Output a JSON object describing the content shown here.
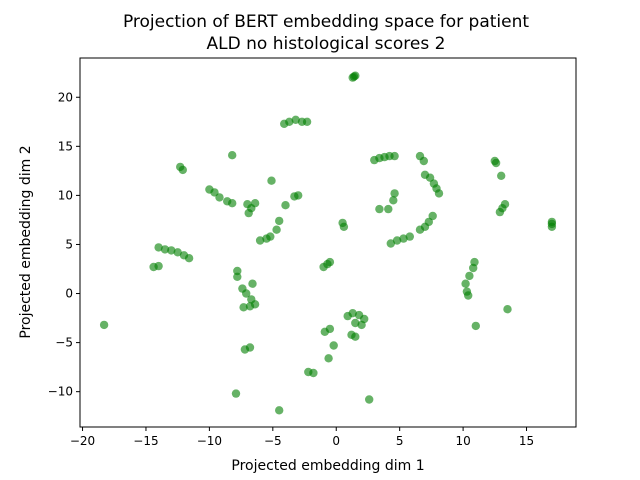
{
  "chart_data": {
    "type": "scatter",
    "title_lines": [
      "Projection of BERT embedding space for patient",
      "ALD no histological scores 2"
    ],
    "xlabel": "Projected embedding dim 1",
    "ylabel": "Projected embedding dim 2",
    "xlim": [
      -20.2,
      18.9
    ],
    "ylim": [
      -13.6,
      24.0
    ],
    "xticks": [
      -20,
      -15,
      -10,
      -5,
      0,
      5,
      10,
      15
    ],
    "yticks": [
      -10,
      -5,
      0,
      5,
      10,
      15,
      20
    ],
    "grid": false,
    "legend": false,
    "color": "#007f00",
    "point_alpha": 0.6,
    "series": [
      {
        "values": [
          {
            "x": 1.3,
            "y": 22.0
          },
          {
            "x": 1.4,
            "y": 22.1
          },
          {
            "x": 1.5,
            "y": 22.2
          },
          {
            "x": -4.1,
            "y": 17.3
          },
          {
            "x": -3.7,
            "y": 17.5
          },
          {
            "x": -3.2,
            "y": 17.7
          },
          {
            "x": -2.7,
            "y": 17.5
          },
          {
            "x": -2.3,
            "y": 17.5
          },
          {
            "x": -12.3,
            "y": 12.9
          },
          {
            "x": -12.1,
            "y": 12.6
          },
          {
            "x": -8.2,
            "y": 14.1
          },
          {
            "x": -5.1,
            "y": 11.5
          },
          {
            "x": -10.0,
            "y": 10.6
          },
          {
            "x": -9.6,
            "y": 10.3
          },
          {
            "x": -9.2,
            "y": 9.8
          },
          {
            "x": -8.6,
            "y": 9.4
          },
          {
            "x": -8.2,
            "y": 9.2
          },
          {
            "x": -7.0,
            "y": 9.1
          },
          {
            "x": -6.7,
            "y": 8.7
          },
          {
            "x": -6.4,
            "y": 9.2
          },
          {
            "x": -6.9,
            "y": 8.2
          },
          {
            "x": -4.0,
            "y": 9.0
          },
          {
            "x": -3.3,
            "y": 9.9
          },
          {
            "x": -3.0,
            "y": 10.0
          },
          {
            "x": -4.5,
            "y": 7.4
          },
          {
            "x": -4.7,
            "y": 6.5
          },
          {
            "x": -5.2,
            "y": 5.8
          },
          {
            "x": -6.0,
            "y": 5.4
          },
          {
            "x": -5.5,
            "y": 5.6
          },
          {
            "x": -14.0,
            "y": 4.7
          },
          {
            "x": -13.5,
            "y": 4.5
          },
          {
            "x": -13.0,
            "y": 4.4
          },
          {
            "x": -12.5,
            "y": 4.2
          },
          {
            "x": -12.0,
            "y": 3.9
          },
          {
            "x": -11.6,
            "y": 3.6
          },
          {
            "x": -14.4,
            "y": 2.7
          },
          {
            "x": -14.0,
            "y": 2.8
          },
          {
            "x": -7.8,
            "y": 2.3
          },
          {
            "x": -7.8,
            "y": 1.7
          },
          {
            "x": -7.4,
            "y": 0.5
          },
          {
            "x": -7.1,
            "y": 0.0
          },
          {
            "x": -6.7,
            "y": -0.6
          },
          {
            "x": -6.4,
            "y": -1.1
          },
          {
            "x": -7.3,
            "y": -1.4
          },
          {
            "x": -6.8,
            "y": -1.3
          },
          {
            "x": -6.6,
            "y": 1.0
          },
          {
            "x": -7.2,
            "y": -5.7
          },
          {
            "x": -6.8,
            "y": -5.5
          },
          {
            "x": -18.3,
            "y": -3.2
          },
          {
            "x": -7.9,
            "y": -10.2
          },
          {
            "x": -4.5,
            "y": -11.9
          },
          {
            "x": -2.2,
            "y": -8.0
          },
          {
            "x": -1.8,
            "y": -8.1
          },
          {
            "x": -1.0,
            "y": 2.7
          },
          {
            "x": -0.7,
            "y": 3.0
          },
          {
            "x": -0.5,
            "y": 3.2
          },
          {
            "x": 0.5,
            "y": 7.2
          },
          {
            "x": 0.6,
            "y": 6.8
          },
          {
            "x": -0.9,
            "y": -3.9
          },
          {
            "x": -0.5,
            "y": -3.6
          },
          {
            "x": -0.2,
            "y": -5.3
          },
          {
            "x": -0.6,
            "y": -6.6
          },
          {
            "x": 0.9,
            "y": -2.3
          },
          {
            "x": 1.3,
            "y": -2.0
          },
          {
            "x": 1.8,
            "y": -2.2
          },
          {
            "x": 2.2,
            "y": -2.6
          },
          {
            "x": 1.5,
            "y": -3.0
          },
          {
            "x": 2.0,
            "y": -3.2
          },
          {
            "x": 1.2,
            "y": -4.2
          },
          {
            "x": 1.5,
            "y": -4.4
          },
          {
            "x": 2.6,
            "y": -10.8
          },
          {
            "x": 3.0,
            "y": 13.6
          },
          {
            "x": 3.4,
            "y": 13.8
          },
          {
            "x": 3.8,
            "y": 13.9
          },
          {
            "x": 4.2,
            "y": 14.0
          },
          {
            "x": 4.6,
            "y": 14.0
          },
          {
            "x": 3.4,
            "y": 8.6
          },
          {
            "x": 4.1,
            "y": 8.6
          },
          {
            "x": 4.5,
            "y": 9.5
          },
          {
            "x": 4.6,
            "y": 10.2
          },
          {
            "x": 4.3,
            "y": 5.1
          },
          {
            "x": 4.8,
            "y": 5.4
          },
          {
            "x": 5.3,
            "y": 5.6
          },
          {
            "x": 5.8,
            "y": 5.8
          },
          {
            "x": 6.6,
            "y": 14.0
          },
          {
            "x": 6.9,
            "y": 13.5
          },
          {
            "x": 7.0,
            "y": 12.1
          },
          {
            "x": 7.4,
            "y": 11.8
          },
          {
            "x": 7.7,
            "y": 11.2
          },
          {
            "x": 7.9,
            "y": 10.7
          },
          {
            "x": 8.1,
            "y": 10.2
          },
          {
            "x": 6.6,
            "y": 6.5
          },
          {
            "x": 7.0,
            "y": 6.8
          },
          {
            "x": 7.3,
            "y": 7.3
          },
          {
            "x": 7.6,
            "y": 7.9
          },
          {
            "x": 10.2,
            "y": 1.0
          },
          {
            "x": 10.3,
            "y": 0.2
          },
          {
            "x": 10.4,
            "y": -0.2
          },
          {
            "x": 10.5,
            "y": 1.8
          },
          {
            "x": 10.8,
            "y": 2.6
          },
          {
            "x": 10.9,
            "y": 3.2
          },
          {
            "x": 11.0,
            "y": -3.3
          },
          {
            "x": 12.5,
            "y": 13.5
          },
          {
            "x": 12.6,
            "y": 13.3
          },
          {
            "x": 13.0,
            "y": 12.0
          },
          {
            "x": 12.9,
            "y": 8.3
          },
          {
            "x": 13.1,
            "y": 8.7
          },
          {
            "x": 13.3,
            "y": 9.1
          },
          {
            "x": 13.5,
            "y": -1.6
          },
          {
            "x": 17.0,
            "y": 6.8
          },
          {
            "x": 17.0,
            "y": 7.1
          },
          {
            "x": 17.0,
            "y": 7.3
          }
        ]
      }
    ]
  }
}
